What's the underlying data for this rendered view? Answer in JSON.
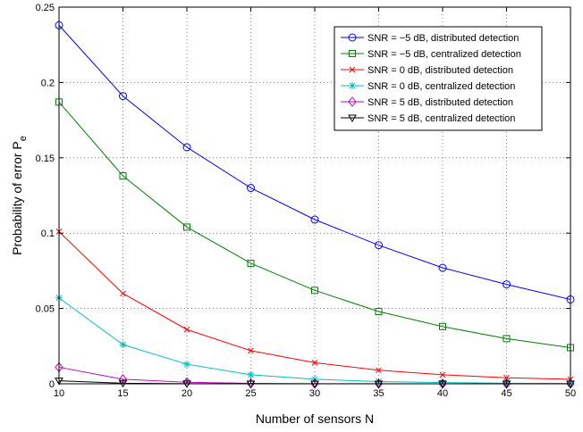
{
  "chart_data": {
    "type": "line",
    "title": "",
    "xlabel": "Number of sensors N",
    "ylabel": "Probability of error P",
    "ylabel_subscript": "e",
    "x": [
      10,
      15,
      20,
      25,
      30,
      35,
      40,
      45,
      50
    ],
    "xlim": [
      10,
      50
    ],
    "ylim": [
      0,
      0.25
    ],
    "xticks": [
      10,
      15,
      20,
      25,
      30,
      35,
      40,
      45,
      50
    ],
    "yticks": [
      0,
      0.05,
      0.1,
      0.15,
      0.2,
      0.25
    ],
    "ytick_labels": [
      "0",
      "0.05",
      "0.1",
      "0.15",
      "0.2",
      "0.25"
    ],
    "grid": true,
    "legend_position": "top-right",
    "series": [
      {
        "name": "SNR = −5 dB, distributed detection",
        "color": "#0000ff",
        "marker": "circle",
        "values": [
          0.238,
          0.191,
          0.157,
          0.13,
          0.109,
          0.092,
          0.077,
          0.066,
          0.056
        ]
      },
      {
        "name": "SNR = −5 dB, centralized detection",
        "color": "#008000",
        "marker": "square",
        "values": [
          0.187,
          0.138,
          0.104,
          0.08,
          0.062,
          0.048,
          0.038,
          0.03,
          0.024
        ]
      },
      {
        "name": "SNR = 0 dB, distributed detection",
        "color": "#ff0000",
        "marker": "x",
        "values": [
          0.101,
          0.06,
          0.036,
          0.022,
          0.014,
          0.009,
          0.006,
          0.004,
          0.003
        ]
      },
      {
        "name": "SNR = 0 dB, centralized detection",
        "color": "#00bfbf",
        "marker": "star",
        "values": [
          0.057,
          0.026,
          0.013,
          0.006,
          0.003,
          0.0015,
          0.0008,
          0.0004,
          0.0002
        ]
      },
      {
        "name": "SNR = 5 dB, distributed detection",
        "color": "#bf00bf",
        "marker": "diamond",
        "values": [
          0.011,
          0.003,
          0.001,
          0.0003,
          0.0001,
          4e-05,
          1e-05,
          0.0,
          0.0
        ]
      },
      {
        "name": "SNR = 5 dB, centralized detection",
        "color": "#000000",
        "marker": "triangle-down",
        "values": [
          0.002,
          0.0004,
          0.0001,
          2e-05,
          0.0,
          0.0,
          0.0,
          0.0,
          0.0
        ]
      }
    ]
  }
}
